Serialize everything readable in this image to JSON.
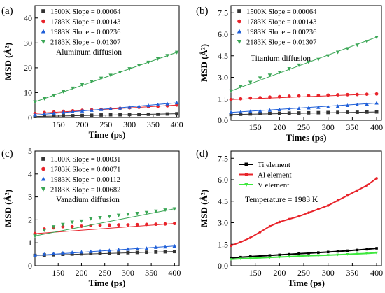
{
  "chart_data": [
    {
      "type": "scatter",
      "panel_label": "(a)",
      "xlabel": "Time (ps)",
      "ylabel": "MSD (Å²)",
      "xlim": [
        100,
        405
      ],
      "ylim": [
        0,
        45
      ],
      "xticks": [
        150,
        200,
        250,
        300,
        350,
        400
      ],
      "yticks": [
        0,
        10,
        20,
        30,
        40
      ],
      "annotation": "Aluminum diffusion",
      "legend_position": "top-left",
      "series": [
        {
          "name": "1500K Slope = 0.00064",
          "color": "#333333",
          "marker": "square",
          "values": [
            0.4,
            0.5,
            0.6,
            0.7,
            0.7,
            0.8,
            0.9,
            1.0,
            1.1,
            1.1,
            1.2,
            1.2,
            1.3,
            1.3,
            1.4,
            1.5
          ]
        },
        {
          "name": "1783K Slope = 0.00143",
          "color": "#e8232a",
          "marker": "circle",
          "values": [
            1.6,
            2.0,
            2.2,
            2.5,
            2.7,
            2.9,
            3.1,
            3.3,
            3.5,
            3.7,
            3.9,
            4.1,
            4.3,
            4.5,
            4.7,
            5.0
          ]
        },
        {
          "name": "1983K Slope = 0.00236",
          "color": "#1f5fd8",
          "marker": "triangle-up",
          "values": [
            1.0,
            1.4,
            1.7,
            2.0,
            2.3,
            2.6,
            2.9,
            3.2,
            3.5,
            3.8,
            4.1,
            4.5,
            4.8,
            5.1,
            5.5,
            5.9
          ]
        },
        {
          "name": "2183K Slope = 0.01307",
          "color": "#3aa655",
          "marker": "triangle-down",
          "values": [
            6.3,
            7.6,
            8.9,
            10.4,
            11.8,
            13.2,
            14.5,
            15.8,
            17.0,
            18.2,
            19.6,
            20.9,
            22.2,
            23.6,
            24.9,
            26.2
          ]
        }
      ],
      "x": [
        100,
        120,
        140,
        160,
        180,
        200,
        220,
        240,
        260,
        280,
        300,
        320,
        340,
        360,
        380,
        400
      ]
    },
    {
      "type": "scatter",
      "panel_label": "(b)",
      "xlabel": "Times (ps)",
      "ylabel": "MSD (Å²)",
      "xlim": [
        100,
        410
      ],
      "ylim": [
        0,
        8
      ],
      "xticks": [
        150,
        200,
        250,
        300,
        350,
        400
      ],
      "yticks": [
        0.0,
        1.5,
        3.0,
        4.5,
        6.0,
        7.5
      ],
      "ytick_labels": [
        "0.0",
        "1.5",
        "3.0",
        "4.5",
        "6.0",
        "7.5"
      ],
      "annotation": "Titanium diffusion",
      "legend_position": "top-left",
      "series": [
        {
          "name": "1500K Slope = 0.00064",
          "color": "#333333",
          "marker": "square",
          "values": [
            0.4,
            0.42,
            0.44,
            0.46,
            0.47,
            0.49,
            0.5,
            0.51,
            0.52,
            0.53,
            0.54,
            0.55,
            0.56,
            0.56,
            0.57,
            0.58
          ]
        },
        {
          "name": "1783K Slope = 0.00143",
          "color": "#e8232a",
          "marker": "circle",
          "values": [
            1.45,
            1.5,
            1.55,
            1.58,
            1.62,
            1.65,
            1.68,
            1.7,
            1.72,
            1.74,
            1.76,
            1.78,
            1.79,
            1.8,
            1.82,
            1.84
          ]
        },
        {
          "name": "1983K Slope = 0.00236",
          "color": "#1f5fd8",
          "marker": "triangle-up",
          "values": [
            0.55,
            0.58,
            0.62,
            0.66,
            0.7,
            0.74,
            0.78,
            0.82,
            0.86,
            0.9,
            0.94,
            0.98,
            1.03,
            1.08,
            1.13,
            1.2
          ]
        },
        {
          "name": "2183K Slope = 0.01307",
          "color": "#3aa655",
          "marker": "triangle-down",
          "values": [
            2.05,
            2.35,
            2.65,
            2.95,
            3.15,
            3.35,
            3.6,
            3.85,
            4.05,
            4.25,
            4.5,
            4.75,
            5.0,
            5.25,
            5.5,
            5.8
          ]
        }
      ],
      "x": [
        100,
        120,
        140,
        160,
        180,
        200,
        220,
        240,
        260,
        280,
        300,
        320,
        340,
        360,
        380,
        400
      ]
    },
    {
      "type": "scatter",
      "panel_label": "(c)",
      "xlabel": "Time (ps)",
      "ylabel": "MSD (Å²)",
      "xlim": [
        100,
        410
      ],
      "ylim": [
        0,
        5
      ],
      "xticks": [
        150,
        200,
        250,
        300,
        350,
        400
      ],
      "yticks": [
        0,
        1,
        2,
        3,
        4,
        5
      ],
      "annotation": "Vanadium diffusion",
      "legend_position": "top-left",
      "series": [
        {
          "name": "1500K Slope = 0.00031",
          "color": "#333333",
          "marker": "square",
          "values": [
            0.45,
            0.47,
            0.48,
            0.5,
            0.51,
            0.52,
            0.53,
            0.54,
            0.55,
            0.56,
            0.57,
            0.58,
            0.59,
            0.6,
            0.61,
            0.62
          ]
        },
        {
          "name": "1783K Slope = 0.00071",
          "color": "#e8232a",
          "marker": "circle",
          "values": [
            1.4,
            1.6,
            1.65,
            1.7,
            1.7,
            1.72,
            1.75,
            1.76,
            1.77,
            1.78,
            1.78,
            1.79,
            1.8,
            1.81,
            1.82,
            1.84
          ]
        },
        {
          "name": "1983K Slope = 0.00112",
          "color": "#1f5fd8",
          "marker": "triangle-up",
          "values": [
            0.45,
            0.5,
            0.53,
            0.56,
            0.58,
            0.6,
            0.62,
            0.65,
            0.67,
            0.7,
            0.72,
            0.74,
            0.76,
            0.8,
            0.82,
            0.86
          ]
        },
        {
          "name": "2183K Slope = 0.00682",
          "color": "#3aa655",
          "marker": "triangle-down",
          "values": [
            1.3,
            1.55,
            1.7,
            1.8,
            1.9,
            1.95,
            2.05,
            2.1,
            2.15,
            2.2,
            2.25,
            2.28,
            2.32,
            2.38,
            2.43,
            2.48
          ]
        }
      ],
      "x": [
        100,
        120,
        140,
        160,
        180,
        200,
        220,
        240,
        260,
        280,
        300,
        320,
        340,
        360,
        380,
        400
      ]
    },
    {
      "type": "line",
      "panel_label": "(d)",
      "xlabel": "Time (ps)",
      "ylabel": "MSD (Å²)",
      "xlim": [
        100,
        410
      ],
      "ylim": [
        0,
        8
      ],
      "xticks": [
        150,
        200,
        250,
        300,
        350,
        400
      ],
      "yticks": [
        0.0,
        1.5,
        3.0,
        4.5,
        6.0,
        7.5
      ],
      "ytick_labels": [
        "0.0",
        "1.5",
        "3.0",
        "4.5",
        "6.0",
        "7.5"
      ],
      "annotation": "Temperature = 1983 K",
      "legend_position": "top-left",
      "series": [
        {
          "name": "Ti element",
          "color": "#000000",
          "marker": "square",
          "values": [
            0.55,
            0.6,
            0.64,
            0.68,
            0.72,
            0.76,
            0.8,
            0.84,
            0.88,
            0.92,
            0.96,
            1.0,
            1.05,
            1.1,
            1.15,
            1.22
          ]
        },
        {
          "name": "Al element",
          "color": "#e8232a",
          "marker": "circle",
          "values": [
            1.4,
            1.65,
            1.95,
            2.35,
            2.75,
            3.05,
            3.25,
            3.45,
            3.7,
            3.95,
            4.2,
            4.55,
            4.9,
            5.25,
            5.6,
            6.1
          ]
        },
        {
          "name": "V  element",
          "color": "#3ee83e",
          "marker": "triangle-down",
          "values": [
            0.45,
            0.49,
            0.52,
            0.55,
            0.58,
            0.61,
            0.64,
            0.67,
            0.7,
            0.72,
            0.74,
            0.77,
            0.8,
            0.83,
            0.86,
            0.9
          ]
        }
      ],
      "x": [
        100,
        120,
        140,
        160,
        180,
        200,
        220,
        240,
        260,
        280,
        300,
        320,
        340,
        360,
        380,
        400
      ]
    }
  ]
}
